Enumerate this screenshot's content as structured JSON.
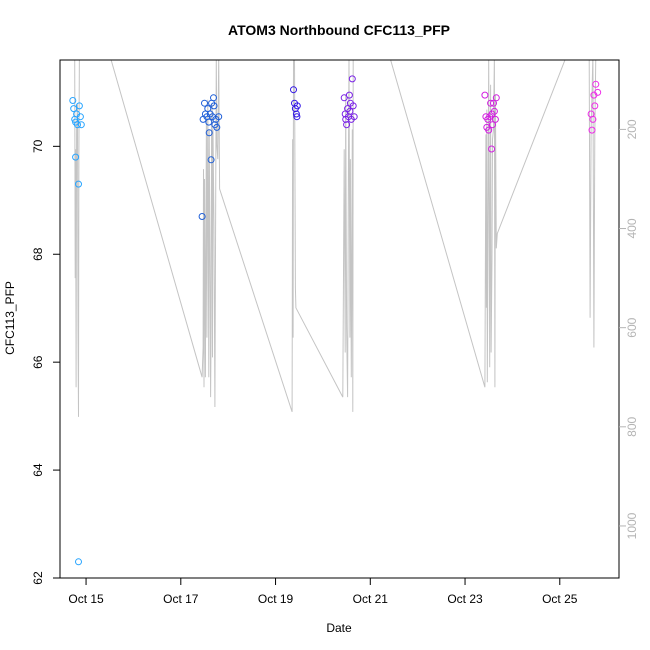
{
  "chart_data": {
    "type": "scatter",
    "title": "ATOM3 Northbound CFC113_PFP",
    "xlabel": "Date",
    "ylabel": "CFC113_PFP",
    "x_ticks": [
      {
        "day": 15,
        "label": "Oct 15"
      },
      {
        "day": 17,
        "label": "Oct 17"
      },
      {
        "day": 19,
        "label": "Oct 19"
      },
      {
        "day": 21,
        "label": "Oct 21"
      },
      {
        "day": 23,
        "label": "Oct 23"
      },
      {
        "day": 25,
        "label": "Oct 25"
      }
    ],
    "xlim": [
      14.45,
      26.25
    ],
    "ylim": [
      62.0,
      71.6
    ],
    "y_ticks": [
      62,
      64,
      66,
      68,
      70
    ],
    "y2_ticks": [
      200,
      400,
      600,
      800,
      1000
    ],
    "y2lim": [
      60,
      1105
    ],
    "y2_reversed": true,
    "point_colors": [
      "#29a5ff",
      "#1f5fd8",
      "#3216e6",
      "#7a22e6",
      "#d21fe0",
      "#ee2de8"
    ],
    "series": [
      {
        "values": [
          [
            14.72,
            70.85
          ],
          [
            14.74,
            70.7
          ],
          [
            14.76,
            70.5
          ],
          [
            14.78,
            70.45
          ],
          [
            14.8,
            70.6
          ],
          [
            14.82,
            70.4
          ],
          [
            14.78,
            69.8
          ],
          [
            14.84,
            69.3
          ],
          [
            14.86,
            70.75
          ],
          [
            14.88,
            70.55
          ],
          [
            14.9,
            70.4
          ],
          [
            14.84,
            62.3
          ]
        ]
      },
      {
        "values": [
          [
            17.45,
            68.7
          ],
          [
            17.47,
            70.5
          ],
          [
            17.5,
            70.8
          ],
          [
            17.52,
            70.6
          ],
          [
            17.55,
            70.55
          ],
          [
            17.57,
            70.7
          ],
          [
            17.59,
            70.45
          ],
          [
            17.6,
            70.25
          ],
          [
            17.62,
            70.6
          ],
          [
            17.64,
            69.75
          ],
          [
            17.65,
            70.8
          ],
          [
            17.67,
            70.55
          ],
          [
            17.69,
            70.9
          ],
          [
            17.7,
            70.75
          ],
          [
            17.72,
            70.4
          ],
          [
            17.74,
            70.5
          ],
          [
            17.76,
            70.35
          ],
          [
            17.8,
            70.55
          ]
        ]
      },
      {
        "values": [
          [
            19.38,
            71.05
          ],
          [
            19.4,
            70.8
          ],
          [
            19.42,
            70.7
          ],
          [
            19.44,
            70.6
          ],
          [
            19.45,
            70.55
          ],
          [
            19.46,
            70.75
          ]
        ]
      },
      {
        "values": [
          [
            20.45,
            70.9
          ],
          [
            20.47,
            70.6
          ],
          [
            20.48,
            70.5
          ],
          [
            20.5,
            70.4
          ],
          [
            20.52,
            70.7
          ],
          [
            20.54,
            70.55
          ],
          [
            20.56,
            70.95
          ],
          [
            20.57,
            70.65
          ],
          [
            20.58,
            70.8
          ],
          [
            20.6,
            70.5
          ],
          [
            20.62,
            71.25
          ],
          [
            20.64,
            70.75
          ],
          [
            20.66,
            70.55
          ]
        ]
      },
      {
        "values": [
          [
            23.42,
            70.95
          ],
          [
            23.44,
            70.55
          ],
          [
            23.46,
            70.35
          ],
          [
            23.48,
            70.5
          ],
          [
            23.5,
            70.3
          ],
          [
            23.52,
            70.55
          ],
          [
            23.54,
            70.8
          ],
          [
            23.56,
            69.95
          ],
          [
            23.57,
            70.6
          ],
          [
            23.58,
            70.4
          ],
          [
            23.6,
            70.8
          ],
          [
            23.62,
            70.65
          ],
          [
            23.64,
            70.5
          ],
          [
            23.66,
            70.9
          ]
        ]
      },
      {
        "values": [
          [
            25.66,
            70.6
          ],
          [
            25.68,
            70.3
          ],
          [
            25.7,
            70.5
          ],
          [
            25.72,
            70.95
          ],
          [
            25.74,
            70.75
          ],
          [
            25.76,
            71.15
          ],
          [
            25.8,
            71.0
          ]
        ]
      }
    ],
    "altitude_line": [
      [
        14.76,
        50
      ],
      [
        14.77,
        500
      ],
      [
        14.78,
        240
      ],
      [
        14.79,
        720
      ],
      [
        14.8,
        200
      ],
      [
        14.82,
        150
      ],
      [
        14.83,
        600
      ],
      [
        14.84,
        780
      ],
      [
        14.85,
        250
      ],
      [
        14.86,
        50
      ],
      [
        15.5,
        50
      ],
      [
        17.45,
        700
      ],
      [
        17.47,
        640
      ],
      [
        17.48,
        280
      ],
      [
        17.49,
        720
      ],
      [
        17.5,
        300
      ],
      [
        17.52,
        700
      ],
      [
        17.54,
        180
      ],
      [
        17.55,
        620
      ],
      [
        17.57,
        140
      ],
      [
        17.59,
        700
      ],
      [
        17.6,
        200
      ],
      [
        17.62,
        530
      ],
      [
        17.63,
        740
      ],
      [
        17.64,
        600
      ],
      [
        17.65,
        180
      ],
      [
        17.66,
        150
      ],
      [
        17.67,
        660
      ],
      [
        17.68,
        200
      ],
      [
        17.7,
        400
      ],
      [
        17.72,
        760
      ],
      [
        17.74,
        240
      ],
      [
        17.75,
        50
      ],
      [
        17.76,
        230
      ],
      [
        17.78,
        260
      ],
      [
        17.8,
        50
      ],
      [
        17.8,
        50
      ],
      [
        17.82,
        320
      ],
      [
        19.35,
        770
      ],
      [
        19.36,
        220
      ],
      [
        19.37,
        620
      ],
      [
        19.38,
        50
      ],
      [
        19.4,
        50
      ],
      [
        19.42,
        520
      ],
      [
        19.43,
        560
      ],
      [
        20.42,
        740
      ],
      [
        20.45,
        240
      ],
      [
        20.47,
        650
      ],
      [
        20.48,
        130
      ],
      [
        20.5,
        600
      ],
      [
        20.52,
        740
      ],
      [
        20.54,
        240
      ],
      [
        20.55,
        50
      ],
      [
        20.57,
        620
      ],
      [
        20.58,
        260
      ],
      [
        20.6,
        700
      ],
      [
        20.62,
        200
      ],
      [
        20.63,
        770
      ],
      [
        20.64,
        50
      ],
      [
        21.4,
        50
      ],
      [
        23.42,
        720
      ],
      [
        23.44,
        210
      ],
      [
        23.45,
        560
      ],
      [
        23.46,
        160
      ],
      [
        23.47,
        710
      ],
      [
        23.48,
        500
      ],
      [
        23.5,
        50
      ],
      [
        23.52,
        680
      ],
      [
        23.53,
        400
      ],
      [
        23.54,
        110
      ],
      [
        23.55,
        650
      ],
      [
        23.57,
        460
      ],
      [
        23.58,
        220
      ],
      [
        23.6,
        200
      ],
      [
        23.62,
        50
      ],
      [
        23.63,
        720
      ],
      [
        23.64,
        130
      ],
      [
        23.66,
        440
      ],
      [
        23.68,
        410
      ],
      [
        25.15,
        50
      ],
      [
        25.62,
        50
      ],
      [
        25.64,
        580
      ],
      [
        25.66,
        200
      ],
      [
        25.68,
        130
      ],
      [
        25.7,
        50
      ],
      [
        25.72,
        640
      ],
      [
        25.74,
        210
      ],
      [
        25.76,
        50
      ]
    ]
  }
}
